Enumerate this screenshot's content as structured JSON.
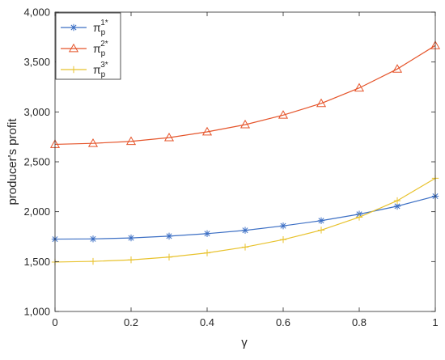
{
  "chart_data": {
    "type": "line",
    "title": "",
    "xlabel": "γ",
    "ylabel": "producer's profit",
    "xlim": [
      0,
      1
    ],
    "ylim": [
      1000,
      4000
    ],
    "grid": false,
    "legend_position": "top-left",
    "x_ticks": [
      0,
      0.2,
      0.4,
      0.6,
      0.8,
      1
    ],
    "x_tick_labels": [
      "0",
      "0.2",
      "0.4",
      "0.6",
      "0.8",
      "1"
    ],
    "y_ticks": [
      1000,
      1500,
      2000,
      2500,
      3000,
      3500,
      4000
    ],
    "y_tick_labels": [
      "1,000",
      "1,500",
      "2,000",
      "2,500",
      "3,000",
      "3,500",
      "4,000"
    ],
    "x": [
      0,
      0.1,
      0.2,
      0.3,
      0.4,
      0.5,
      0.6,
      0.7,
      0.8,
      0.9,
      1.0
    ],
    "series": [
      {
        "name": "π_p^{1*}",
        "legend_base": "π",
        "legend_sub": "p",
        "legend_sup": "1*",
        "color": "#3c6fc4",
        "marker": "star",
        "values": [
          1725,
          1727,
          1737,
          1755,
          1780,
          1813,
          1858,
          1910,
          1975,
          2055,
          2155
        ]
      },
      {
        "name": "π_p^{2*}",
        "legend_base": "π",
        "legend_sub": "p",
        "legend_sup": "2*",
        "color": "#e5542a",
        "marker": "triangle",
        "values": [
          2675,
          2685,
          2705,
          2742,
          2800,
          2872,
          2968,
          3085,
          3240,
          3430,
          3665
        ]
      },
      {
        "name": "π_p^{3*}",
        "legend_base": "π",
        "legend_sub": "p",
        "legend_sup": "3*",
        "color": "#e8c22c",
        "marker": "plus",
        "values": [
          1495,
          1502,
          1517,
          1545,
          1587,
          1645,
          1720,
          1815,
          1945,
          2110,
          2335
        ]
      }
    ]
  }
}
